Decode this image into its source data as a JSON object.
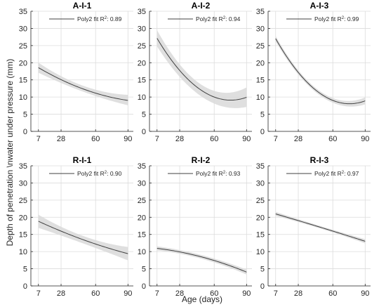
{
  "figure": {
    "ylabel": "Depth of penetration \\nwater under pressure (mm)",
    "xlabel": "Age (days)"
  },
  "chart_data": [
    {
      "type": "line",
      "title": "A-I-1",
      "legend": {
        "prefix": "Poly2 fit R",
        "sup": "2",
        "suffix": ": 0.89",
        "placement": "top"
      },
      "x": [
        7,
        28,
        60,
        90
      ],
      "y": [
        18.6,
        15.0,
        11.2,
        9.0
      ],
      "band": {
        "lower": [
          17.1,
          14.1,
          10.3,
          7.6
        ],
        "upper": [
          20.1,
          15.9,
          12.3,
          10.6
        ]
      },
      "xticks": [
        7,
        28,
        60,
        90
      ],
      "yticks": [
        0,
        5,
        10,
        15,
        20,
        25,
        30,
        35
      ],
      "xlim": [
        0,
        95
      ],
      "ylim": [
        0,
        35
      ],
      "grid": true
    },
    {
      "type": "line",
      "title": "A-I-2",
      "legend": {
        "prefix": "Poly2 fit R",
        "sup": "2",
        "suffix": ": 0.94",
        "placement": "top"
      },
      "x": [
        7,
        28,
        60,
        90
      ],
      "y": [
        27.0,
        18.0,
        9.8,
        10.0
      ],
      "band": {
        "lower": [
          24.5,
          16.5,
          7.6,
          7.3
        ],
        "upper": [
          29.5,
          19.5,
          11.8,
          12.8
        ]
      },
      "xticks": [
        7,
        28,
        60,
        90
      ],
      "yticks": [
        0,
        5,
        10,
        15,
        20,
        25,
        30,
        35
      ],
      "xlim": [
        0,
        95
      ],
      "ylim": [
        0,
        35
      ],
      "grid": true
    },
    {
      "type": "line",
      "title": "A-I-3",
      "legend": {
        "prefix": "Poly2 fit R",
        "sup": "2",
        "suffix": ": 0.99",
        "placement": "top"
      },
      "x": [
        7,
        28,
        60,
        90
      ],
      "y": [
        27.0,
        17.2,
        9.0,
        8.9
      ],
      "band": {
        "lower": [
          26.2,
          16.6,
          8.3,
          7.9
        ],
        "upper": [
          27.8,
          17.8,
          9.7,
          9.9
        ]
      },
      "xticks": [
        7,
        28,
        60,
        90
      ],
      "yticks": [
        0,
        5,
        10,
        15,
        20,
        25,
        30,
        35
      ],
      "xlim": [
        0,
        95
      ],
      "ylim": [
        0,
        35
      ],
      "grid": true
    },
    {
      "type": "line",
      "title": "R-I-1",
      "legend": {
        "prefix": "Poly2 fit R",
        "sup": "2",
        "suffix": ": 0.90",
        "placement": "top"
      },
      "x": [
        7,
        28,
        60,
        90
      ],
      "y": [
        19.0,
        15.6,
        12.5,
        9.3
      ],
      "band": {
        "lower": [
          17.0,
          14.5,
          11.2,
          7.4
        ],
        "upper": [
          21.0,
          16.7,
          13.8,
          11.2
        ]
      },
      "xticks": [
        7,
        28,
        60,
        90
      ],
      "yticks": [
        0,
        5,
        10,
        15,
        20,
        25,
        30,
        35
      ],
      "xlim": [
        0,
        95
      ],
      "ylim": [
        0,
        35
      ],
      "grid": true
    },
    {
      "type": "line",
      "title": "R-I-2",
      "legend": {
        "prefix": "Poly2 fit R",
        "sup": "2",
        "suffix": ": 0.93",
        "placement": "top"
      },
      "x": [
        7,
        28,
        60,
        90
      ],
      "y": [
        11.0,
        9.8,
        7.5,
        4.0
      ],
      "band": {
        "lower": [
          10.4,
          9.3,
          6.9,
          3.3
        ],
        "upper": [
          11.6,
          10.3,
          8.1,
          4.7
        ]
      },
      "xticks": [
        7,
        28,
        60,
        90
      ],
      "yticks": [
        0,
        5,
        10,
        15,
        20,
        25,
        30,
        35
      ],
      "xlim": [
        0,
        95
      ],
      "ylim": [
        0,
        35
      ],
      "grid": true
    },
    {
      "type": "line",
      "title": "R-I-3",
      "legend": {
        "prefix": "Poly2 fit R",
        "sup": "2",
        "suffix": ": 0.97",
        "placement": "top"
      },
      "x": [
        7,
        28,
        60,
        90
      ],
      "y": [
        21.0,
        19.0,
        16.0,
        13.0
      ],
      "band": {
        "lower": [
          20.4,
          18.6,
          15.6,
          12.4
        ],
        "upper": [
          21.6,
          19.4,
          16.4,
          13.6
        ]
      },
      "xticks": [
        7,
        28,
        60,
        90
      ],
      "yticks": [
        0,
        5,
        10,
        15,
        20,
        25,
        30,
        35
      ],
      "xlim": [
        0,
        95
      ],
      "ylim": [
        0,
        35
      ],
      "grid": true
    }
  ]
}
